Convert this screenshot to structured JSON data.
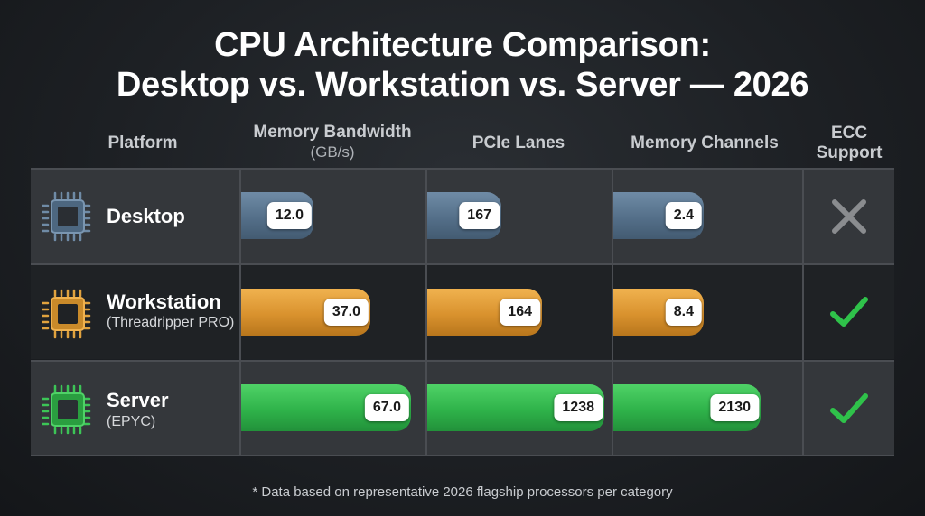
{
  "title_line1": "CPU Architecture Comparison:",
  "title_line2": "Desktop vs. Workstation vs. Server — 2026",
  "footnote": "* Data based on representative 2026 flagship processors per category",
  "chart_data": {
    "type": "bar",
    "orientation": "horizontal",
    "columns": [
      {
        "key": "memory_bandwidth",
        "label": "Memory Bandwidth",
        "unit": "(GB/s)"
      },
      {
        "key": "pcie_lanes",
        "label": "PCIe Lanes",
        "unit": ""
      },
      {
        "key": "memory_channels",
        "label": "Memory Channels",
        "unit": ""
      }
    ],
    "platform_header": "Platform",
    "ecc_header_line1": "ECC",
    "ecc_header_line2": "Support",
    "categories": [
      "Desktop",
      "Workstation",
      "Server"
    ],
    "rows": [
      {
        "name": "Desktop",
        "subtitle": "",
        "color": "#546f89",
        "values": {
          "memory_bandwidth": "12.0",
          "pcie_lanes": "167",
          "memory_channels": "2.4"
        },
        "ecc": false
      },
      {
        "name": "Workstation",
        "subtitle": "(Threadripper PRO)",
        "color": "#d9922e",
        "values": {
          "memory_bandwidth": "37.0",
          "pcie_lanes": "164",
          "memory_channels": "8.4"
        },
        "ecc": true
      },
      {
        "name": "Server",
        "subtitle": "(EPYC)",
        "color": "#2fb34a",
        "values": {
          "memory_bandwidth": "67.0",
          "pcie_lanes": "1238",
          "memory_channels": "2130"
        },
        "ecc": true
      }
    ],
    "bar_fill_fraction": {
      "Desktop": [
        0.43,
        0.44,
        0.53
      ],
      "Workstation": [
        0.74,
        0.66,
        0.53
      ],
      "Server": [
        0.96,
        1.0,
        0.84
      ]
    },
    "colors": {
      "cross": "#8a8c8f",
      "check": "#2fc24a"
    }
  }
}
